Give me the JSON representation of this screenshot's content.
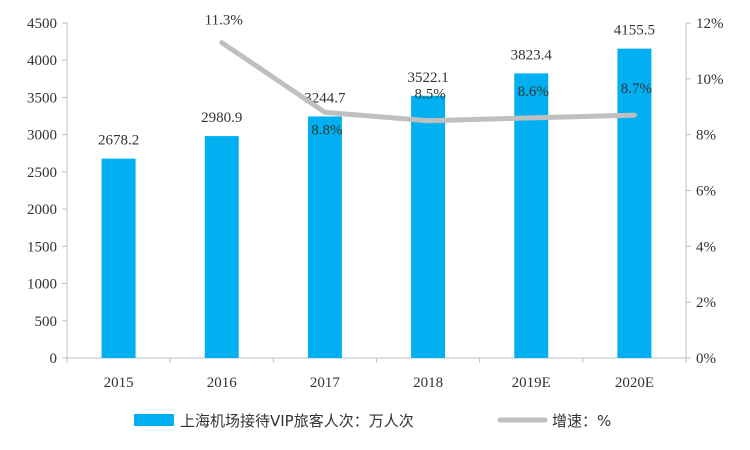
{
  "chart_data": {
    "type": "bar",
    "categories": [
      "2015",
      "2016",
      "2017",
      "2018",
      "2019E",
      "2020E"
    ],
    "series": [
      {
        "name": "上海机场接待VIP旅客人次：万人次",
        "type": "bar",
        "axis": "left",
        "values": [
          2678.2,
          2980.9,
          3244.7,
          3522.1,
          3823.4,
          4155.5
        ],
        "labels": [
          "2678.2",
          "2980.9",
          "3244.7",
          "3522.1",
          "3823.4",
          "4155.5"
        ],
        "color": "#00b0f0"
      },
      {
        "name": "增速：%",
        "type": "line",
        "axis": "right",
        "values": [
          null,
          11.3,
          8.8,
          8.5,
          8.6,
          8.7
        ],
        "labels": [
          "",
          "11.3%",
          "8.8%",
          "8.5%",
          "8.6%",
          "8.7%"
        ],
        "color": "#bfbfbf"
      }
    ],
    "y_left": {
      "min": 0,
      "max": 4500,
      "ticks": [
        "0",
        "500",
        "1000",
        "1500",
        "2000",
        "2500",
        "3000",
        "3500",
        "4000",
        "4500"
      ]
    },
    "y_right": {
      "min": 0,
      "max": 12,
      "ticks": [
        "0%",
        "2%",
        "4%",
        "6%",
        "8%",
        "10%",
        "12%"
      ]
    },
    "grid": false,
    "legend": "bottom"
  }
}
